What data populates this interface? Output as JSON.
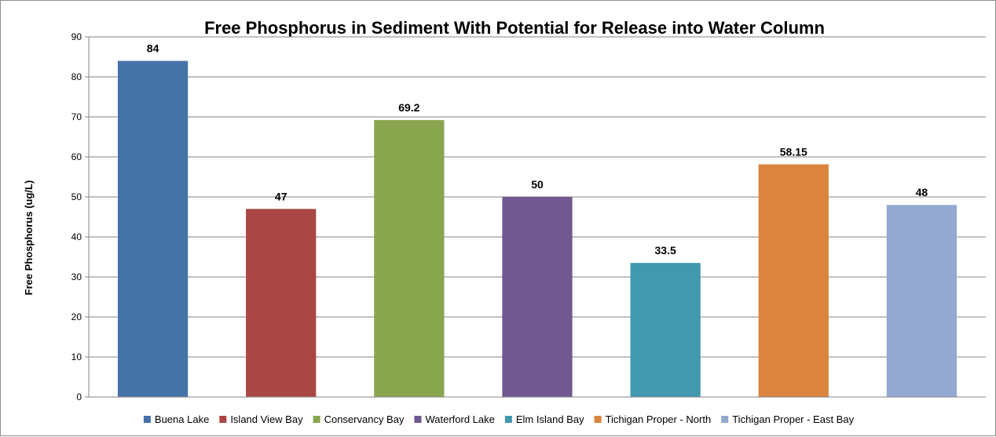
{
  "chart_data": {
    "type": "bar",
    "title": "Free Phosphorus in Sediment With Potential for Release into Water Column",
    "xlabel": "",
    "ylabel": "Free Phosphorus (ug/L)",
    "ylim": [
      0,
      90
    ],
    "yticks": [
      0,
      10,
      20,
      30,
      40,
      50,
      60,
      70,
      80,
      90
    ],
    "categories": [
      "Buena Lake",
      "Island View Bay",
      "Conservancy Bay",
      "Waterford Lake",
      "Elm Island Bay",
      "Tichigan Proper - North",
      "Tichigan Proper - East Bay"
    ],
    "values": [
      84,
      47,
      69.2,
      50,
      33.5,
      58.15,
      48
    ],
    "data_labels": [
      "84",
      "47",
      "69.2",
      "50",
      "33.5",
      "58.15",
      "48"
    ],
    "colors": [
      "#4572a7",
      "#aa4643",
      "#89a54e",
      "#71588f",
      "#4198af",
      "#db843d",
      "#93a9cf"
    ],
    "grid": true,
    "legend_position": "bottom"
  }
}
